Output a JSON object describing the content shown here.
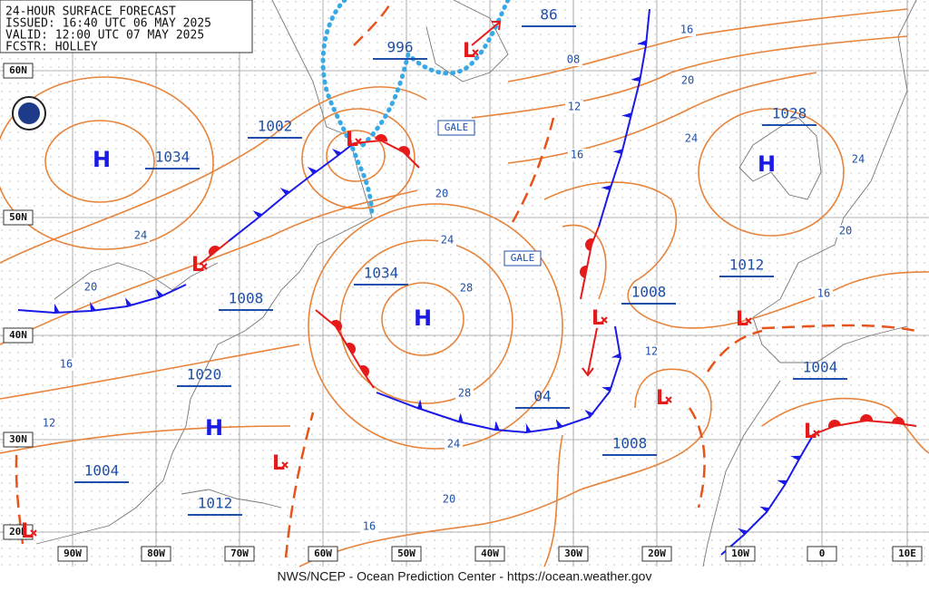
{
  "header": {
    "lines": [
      "24-HOUR SURFACE FORECAST",
      "ISSUED: 16:40 UTC 06 MAY 2025",
      "VALID:  12:00 UTC 07 MAY 2025",
      "FCSTR:  HOLLEY"
    ]
  },
  "footer": "NWS/NCEP - Ocean Prediction Center - https://ocean.weather.gov",
  "lat_labels": [
    "60N",
    "50N",
    "40N",
    "30N",
    "20N"
  ],
  "lon_labels": [
    "90W",
    "80W",
    "70W",
    "60W",
    "50W",
    "40W",
    "30W",
    "20W",
    "10W",
    "0",
    "10E"
  ],
  "pressure_labels": [
    "996",
    "86",
    "1002",
    "1034",
    "1028",
    "1034",
    "1012",
    "1008",
    "1008",
    "1020",
    "04",
    "1004",
    "1008",
    "1004",
    "1012"
  ],
  "isobar_labels": [
    "16",
    "08",
    "12",
    "20",
    "24",
    "16",
    "20",
    "24",
    "28",
    "28",
    "24",
    "20",
    "16",
    "12",
    "16",
    "20",
    "24",
    "24",
    "20",
    "16",
    "12"
  ],
  "highs": [
    "H",
    "H",
    "H",
    "H"
  ],
  "lows": [
    "L",
    "L",
    "L",
    "L",
    "L",
    "L",
    "L",
    "L",
    "L"
  ],
  "gale_labels": [
    "GALE",
    "GALE"
  ]
}
